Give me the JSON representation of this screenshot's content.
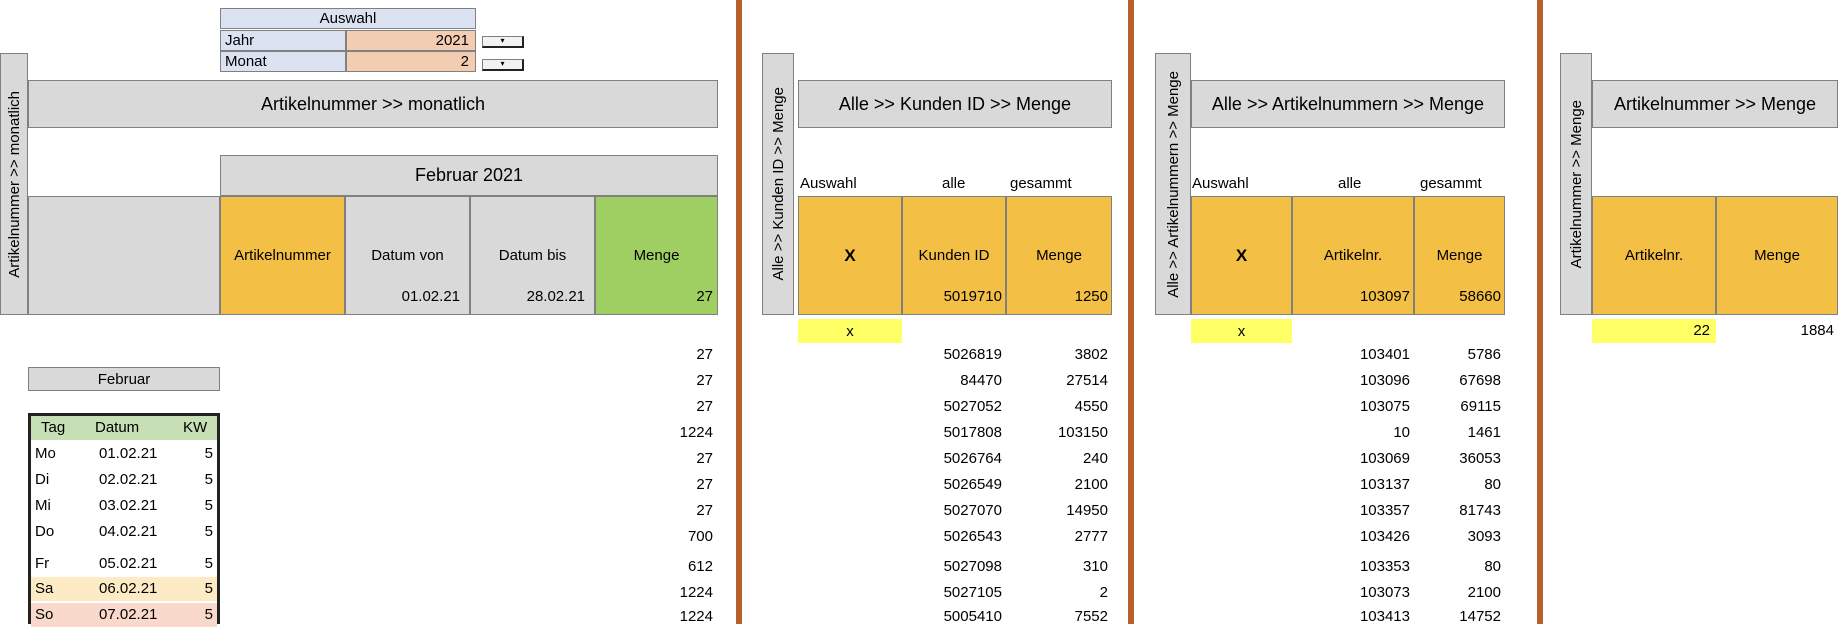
{
  "selection": {
    "header": "Auswahl",
    "rows": [
      {
        "label": "Jahr",
        "value": "2021"
      },
      {
        "label": "Monat",
        "value": "2"
      }
    ],
    "spinner_icon": "▾"
  },
  "panel1": {
    "side_title": "Artikelnummer >> monatlich",
    "title": "Artikelnummer >> monatlich",
    "period": "Februar  2021",
    "headers": [
      "Artikelnummer",
      "Datum von",
      "Datum bis",
      "Menge"
    ],
    "first_row": {
      "datum_von": "01.02.21",
      "datum_bis": "28.02.21"
    },
    "mengen": [
      "27",
      "27",
      "27",
      "27",
      "1224",
      "27",
      "27",
      "27",
      "700",
      "612",
      "1224",
      "1224"
    ],
    "month_button": "Februar",
    "calendar": {
      "headers": [
        "Tag",
        "Datum",
        "KW"
      ],
      "rows": [
        {
          "tag": "Mo",
          "datum": "01.02.21",
          "kw": "5"
        },
        {
          "tag": "Di",
          "datum": "02.02.21",
          "kw": "5"
        },
        {
          "tag": "Mi",
          "datum": "03.02.21",
          "kw": "5"
        },
        {
          "tag": "Do",
          "datum": "04.02.21",
          "kw": "5"
        },
        {
          "tag": "Fr",
          "datum": "05.02.21",
          "kw": "5"
        },
        {
          "tag": "Sa",
          "datum": "06.02.21",
          "kw": "5"
        },
        {
          "tag": "So",
          "datum": "07.02.21",
          "kw": "5"
        }
      ]
    }
  },
  "panel2": {
    "side_title": "Alle  >> Kunden ID  >> Menge",
    "title": "Alle  >> Kunden ID  >> Menge",
    "sub": [
      "Auswahl",
      "alle",
      "gesammt"
    ],
    "headers": [
      "X",
      "Kunden ID",
      "Menge"
    ],
    "selected": "x",
    "rows": [
      [
        "5019710",
        "1250"
      ],
      [
        "5026819",
        "3802"
      ],
      [
        "84470",
        "27514"
      ],
      [
        "5027052",
        "4550"
      ],
      [
        "5017808",
        "103150"
      ],
      [
        "5026764",
        "240"
      ],
      [
        "5026549",
        "2100"
      ],
      [
        "5027070",
        "14950"
      ],
      [
        "5026543",
        "2777"
      ],
      [
        "5027098",
        "310"
      ],
      [
        "5027105",
        "2"
      ],
      [
        "5005410",
        "7552"
      ]
    ]
  },
  "panel3": {
    "side_title": "Alle  >> Artikelnummern  >> Menge",
    "title": "Alle  >> Artikelnummern  >> Menge",
    "sub": [
      "Auswahl",
      "alle",
      "gesammt"
    ],
    "headers": [
      "X",
      "Artikelnr.",
      "Menge"
    ],
    "selected": "x",
    "rows": [
      [
        "103097",
        "58660"
      ],
      [
        "103401",
        "5786"
      ],
      [
        "103096",
        "67698"
      ],
      [
        "103075",
        "69115"
      ],
      [
        "10",
        "1461"
      ],
      [
        "103069",
        "36053"
      ],
      [
        "103137",
        "80"
      ],
      [
        "103357",
        "81743"
      ],
      [
        "103426",
        "3093"
      ],
      [
        "103353",
        "80"
      ],
      [
        "103073",
        "2100"
      ],
      [
        "103413",
        "14752"
      ]
    ]
  },
  "panel4": {
    "side_title": "Artikelnummer  >> Menge",
    "title": "Artikelnummer  >> Menge",
    "headers": [
      "Artikelnr.",
      "Menge"
    ],
    "row": [
      "22",
      "1884"
    ]
  }
}
